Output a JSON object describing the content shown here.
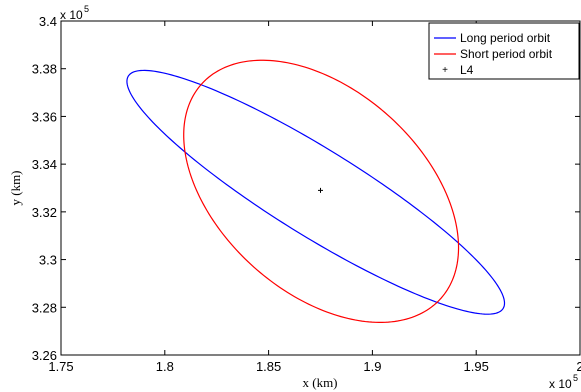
{
  "chart_data": {
    "type": "line",
    "xlabel": "x (km)",
    "ylabel": "y (km)",
    "x_multiplier": {
      "base": "x 10",
      "exp": "5"
    },
    "y_multiplier": {
      "base": "x 10",
      "exp": "5"
    },
    "xlim": [
      1.75,
      2.0
    ],
    "ylim": [
      3.26,
      3.4
    ],
    "x_ticks": [
      "1.75",
      "1.8",
      "1.85",
      "1.9",
      "1.95",
      "2"
    ],
    "y_ticks": [
      "3.26",
      "3.28",
      "3.3",
      "3.32",
      "3.34",
      "3.36",
      "3.38",
      "3.4"
    ],
    "legend_position": "top-right",
    "grid": false,
    "series": [
      {
        "name": "Long period orbit",
        "kind": "ellipse",
        "color": "#0000ff",
        "center": [
          1.8727,
          3.3282
        ],
        "radius_along_axis": 0.1026,
        "radius_across_axis": 0.0188,
        "major_axis_direction_deg": -28.1
      },
      {
        "name": "Short period orbit",
        "kind": "ellipse",
        "color": "#ff0000",
        "center": [
          1.8753,
          3.3286
        ],
        "radius_along_axis": 0.0735,
        "radius_across_axis": 0.0447,
        "major_axis_direction_deg": -33.2
      },
      {
        "name": "L4",
        "kind": "point",
        "color": "#000000",
        "x": 1.875,
        "y": 3.329
      }
    ]
  }
}
